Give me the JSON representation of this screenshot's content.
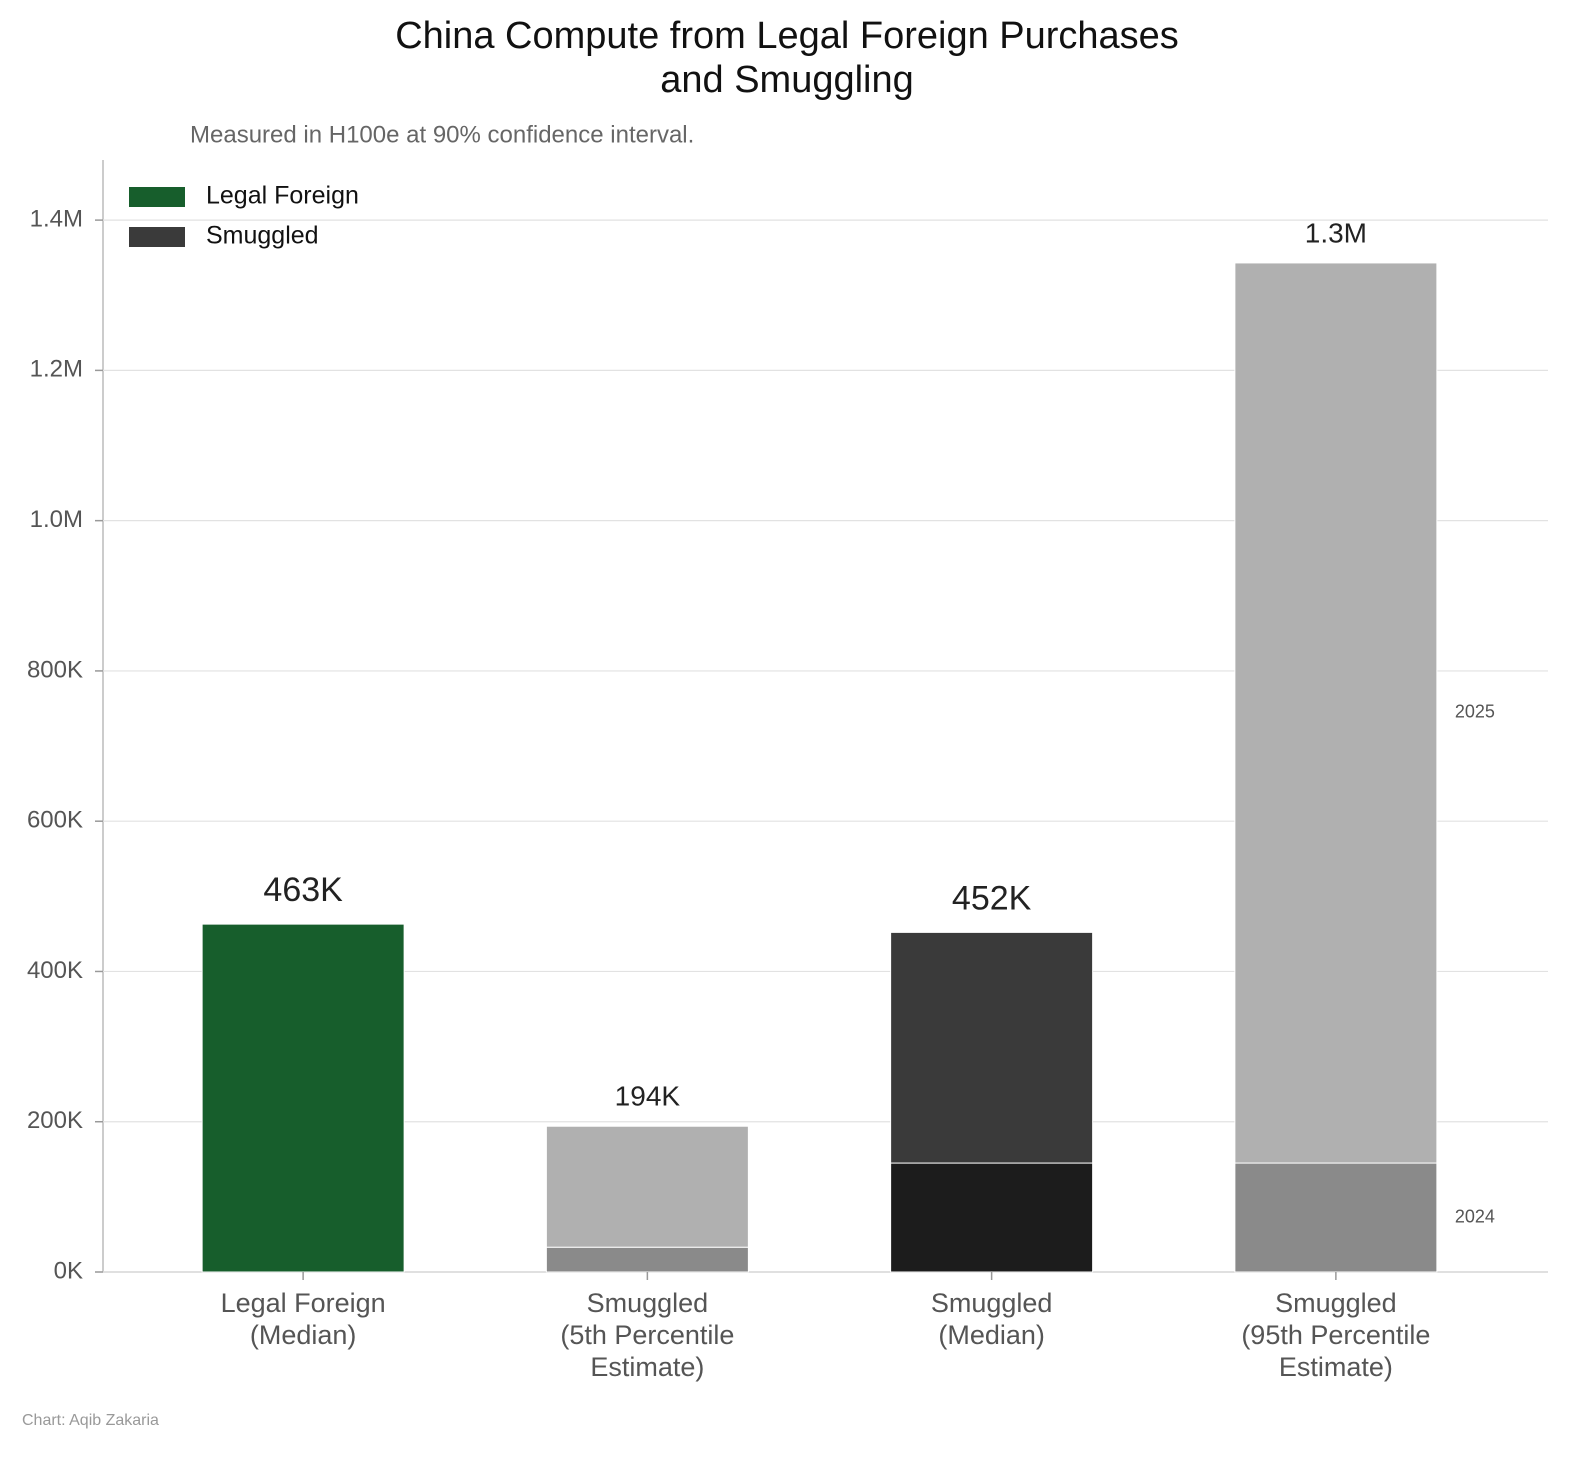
{
  "chart_data": {
    "type": "stacked-bar",
    "title": "China Compute from Legal Foreign Purchases and Smuggling",
    "subtitle": "Measured in H100e at 90% confidence interval.",
    "source": "Chart: Aqib Zakaria",
    "categories": [
      [
        "Legal Foreign",
        "(Median)"
      ],
      [
        "Smuggled",
        "(5th Percentile",
        "Estimate)"
      ],
      [
        "Smuggled",
        "(Median)"
      ],
      [
        "Smuggled",
        "(95th Percentile",
        "Estimate)"
      ]
    ],
    "series": [
      {
        "name": "2024",
        "values": [
          463000,
          33000,
          145000,
          145000
        ],
        "colors": [
          "#175e2c",
          "#8a8a8a",
          "#1c1c1c",
          "#8a8a8a"
        ]
      },
      {
        "name": "2025",
        "values": [
          null,
          161000,
          307000,
          1198000
        ],
        "colors": [
          null,
          "#b0b0b0",
          "#3a3a3a",
          "#b0b0b0"
        ]
      }
    ],
    "totals": [
      463000,
      194000,
      452000,
      1343000
    ],
    "total_labels": [
      "463K",
      "194K",
      "452K",
      "1.3M"
    ],
    "legend": [
      {
        "name": "Legal Foreign",
        "color": "#175e2c"
      },
      {
        "name": "Smuggled",
        "color": "#3a3a3a"
      }
    ],
    "legend_position": "upper left",
    "ylim": [
      0,
      1480000
    ],
    "yticks": [
      {
        "value": 0,
        "label": "0K"
      },
      {
        "value": 200000,
        "label": "200K"
      },
      {
        "value": 400000,
        "label": "400K"
      },
      {
        "value": 600000,
        "label": "600K"
      },
      {
        "value": 800000,
        "label": "800K"
      },
      {
        "value": 1000000,
        "label": "1.0M"
      },
      {
        "value": 1200000,
        "label": "1.2M"
      },
      {
        "value": 1400000,
        "label": "1.4M"
      }
    ],
    "grid": true
  }
}
